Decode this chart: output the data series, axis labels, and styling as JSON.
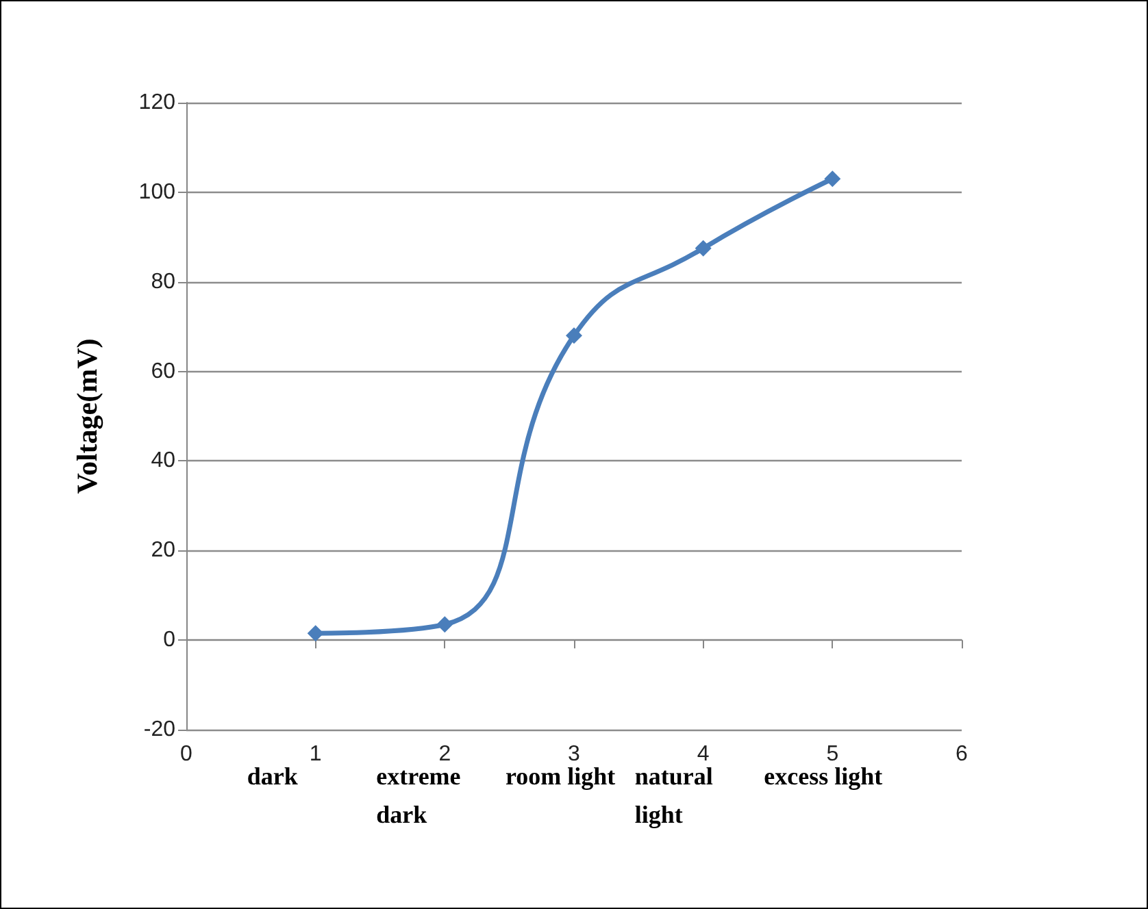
{
  "chart_data": {
    "type": "line",
    "ylabel": "Voltage(mV)",
    "x": [
      1,
      2,
      3,
      4,
      5
    ],
    "series": [
      {
        "color": "#4a7ebb",
        "values": [
          1.5,
          3.5,
          68,
          87.5,
          103
        ]
      }
    ],
    "xlim": [
      0,
      6
    ],
    "xticks": [
      0,
      1,
      2,
      3,
      4,
      5,
      6
    ],
    "ylim": [
      -20,
      120
    ],
    "yticks": [
      -20,
      0,
      20,
      40,
      60,
      80,
      100,
      120
    ],
    "grid": "y",
    "marker": "diamond",
    "line_style": "solid",
    "annotations": [
      "dark",
      "extreme dark",
      "room light",
      "natural light",
      "excess light"
    ]
  }
}
